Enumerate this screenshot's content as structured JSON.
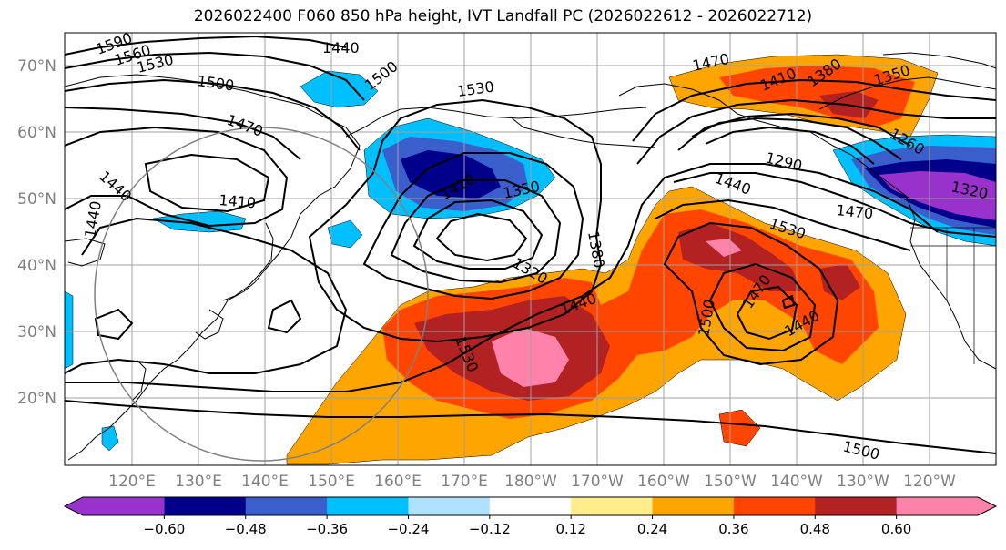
{
  "title": "2026022400 F060 850 hPa height, IVT Landfall PC (2026022612 - 2026022712)",
  "map": {
    "lat_labels": [
      "70°N",
      "60°N",
      "50°N",
      "40°N",
      "30°N",
      "20°N"
    ],
    "lon_labels": [
      "120°E",
      "130°E",
      "140°E",
      "150°E",
      "160°E",
      "170°E",
      "180°W",
      "170°W",
      "160°W",
      "150°W",
      "140°W",
      "130°W",
      "120°W"
    ],
    "contour_labels": [
      "1590",
      "1560",
      "1530",
      "1500",
      "1440",
      "1500",
      "1530",
      "1470",
      "1410",
      "1380",
      "1350",
      "1260",
      "1470",
      "1440",
      "1410",
      "1410",
      "1350",
      "1290",
      "1440",
      "1320",
      "1470",
      "1380",
      "1530",
      "1320",
      "1440",
      "1440",
      "1530",
      "1500",
      "1470",
      "1440",
      "1500"
    ],
    "colors": {
      "purple": "#9932cc",
      "navy": "#00008b",
      "royal": "#3a5fcd",
      "sky": "#00bfff",
      "lightblue": "#b0e2ff",
      "yellow": "#ffec8b",
      "orange": "#ffa500",
      "redorange": "#ff4500",
      "firebrick": "#b22222",
      "pink": "#ff82ab"
    }
  },
  "colorbar": {
    "ticks": [
      "−0.60",
      "−0.48",
      "−0.36",
      "−0.24",
      "−0.12",
      "0.12",
      "0.24",
      "0.36",
      "0.48",
      "0.60"
    ],
    "colors": [
      "#9932cc",
      "#00008b",
      "#3a5fcd",
      "#00bfff",
      "#b0e2ff",
      "#ffffff",
      "#ffec8b",
      "#ffa500",
      "#ff4500",
      "#b22222",
      "#ff82ab"
    ]
  }
}
